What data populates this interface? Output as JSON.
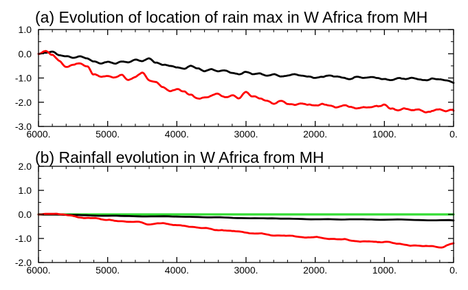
{
  "chart_data": [
    {
      "type": "line",
      "title": "(a) Evolution of location of rain max in W Africa from MH",
      "xlabel": "",
      "ylabel": "",
      "xlim": [
        6000,
        0
      ],
      "ylim": [
        -3.0,
        1.0
      ],
      "xticks": [
        6000,
        5000,
        4000,
        3000,
        2000,
        1000,
        0
      ],
      "xtick_labels": [
        "6000.",
        "5000.",
        "4000.",
        "3000.",
        "2000.",
        "1000.",
        "0."
      ],
      "yticks": [
        1.0,
        0.0,
        -1.0,
        -2.0,
        -3.0
      ],
      "ytick_labels": [
        "1.0",
        "0.0",
        "-1.0",
        "-2.0",
        "-3.0"
      ],
      "grid": false,
      "series": [
        {
          "name": "black",
          "color": "#000000",
          "x": [
            6000,
            5900,
            5800,
            5700,
            5600,
            5500,
            5400,
            5300,
            5200,
            5100,
            5000,
            4900,
            4800,
            4700,
            4600,
            4500,
            4400,
            4300,
            4200,
            4100,
            4000,
            3900,
            3800,
            3700,
            3600,
            3500,
            3400,
            3300,
            3200,
            3100,
            3000,
            2900,
            2800,
            2700,
            2600,
            2500,
            2400,
            2300,
            2200,
            2100,
            2000,
            1900,
            1800,
            1700,
            1600,
            1500,
            1400,
            1300,
            1200,
            1100,
            1000,
            900,
            800,
            700,
            600,
            500,
            400,
            300,
            200,
            100,
            0
          ],
          "values": [
            0.0,
            0.05,
            0.1,
            -0.05,
            -0.1,
            -0.15,
            -0.08,
            -0.2,
            -0.3,
            -0.4,
            -0.35,
            -0.4,
            -0.3,
            -0.35,
            -0.25,
            -0.3,
            -0.2,
            -0.35,
            -0.45,
            -0.5,
            -0.55,
            -0.6,
            -0.5,
            -0.6,
            -0.7,
            -0.65,
            -0.75,
            -0.7,
            -0.8,
            -0.85,
            -0.75,
            -0.85,
            -0.8,
            -0.9,
            -0.85,
            -0.95,
            -0.9,
            -0.85,
            -0.9,
            -0.95,
            -1.0,
            -0.95,
            -0.9,
            -0.95,
            -1.0,
            -1.05,
            -0.95,
            -1.0,
            -0.95,
            -1.0,
            -1.05,
            -1.1,
            -1.0,
            -1.05,
            -1.0,
            -1.05,
            -1.1,
            -1.0,
            -1.05,
            -1.1,
            -1.2
          ]
        },
        {
          "name": "red",
          "color": "#ff0000",
          "x": [
            6000,
            5900,
            5800,
            5700,
            5600,
            5500,
            5400,
            5300,
            5200,
            5100,
            5000,
            4900,
            4800,
            4700,
            4600,
            4500,
            4400,
            4300,
            4200,
            4100,
            4000,
            3900,
            3800,
            3700,
            3600,
            3500,
            3400,
            3300,
            3200,
            3100,
            3000,
            2900,
            2800,
            2700,
            2600,
            2500,
            2400,
            2300,
            2200,
            2100,
            2000,
            1900,
            1800,
            1700,
            1600,
            1500,
            1400,
            1300,
            1200,
            1100,
            1000,
            900,
            800,
            700,
            600,
            500,
            400,
            300,
            200,
            100,
            0
          ],
          "values": [
            0.0,
            0.1,
            -0.05,
            -0.3,
            -0.5,
            -0.45,
            -0.4,
            -0.55,
            -0.85,
            -0.95,
            -0.9,
            -0.95,
            -0.85,
            -1.1,
            -0.95,
            -0.8,
            -1.1,
            -1.15,
            -1.4,
            -1.55,
            -1.45,
            -1.55,
            -1.7,
            -1.85,
            -1.8,
            -1.75,
            -1.65,
            -1.8,
            -1.7,
            -1.85,
            -1.6,
            -1.75,
            -1.85,
            -1.95,
            -2.05,
            -1.95,
            -2.05,
            -2.1,
            -2.05,
            -2.1,
            -2.15,
            -2.1,
            -2.15,
            -2.2,
            -2.15,
            -2.2,
            -2.25,
            -2.2,
            -2.25,
            -2.2,
            -2.1,
            -2.25,
            -2.35,
            -2.3,
            -2.35,
            -2.3,
            -2.4,
            -2.35,
            -2.3,
            -2.35,
            -2.35
          ]
        }
      ]
    },
    {
      "type": "line",
      "title": "(b) Rainfall evolution in W Africa from MH",
      "xlabel": "",
      "ylabel": "",
      "xlim": [
        6000,
        0
      ],
      "ylim": [
        -2.0,
        2.0
      ],
      "xticks": [
        6000,
        5000,
        4000,
        3000,
        2000,
        1000,
        0
      ],
      "xtick_labels": [
        "6000.",
        "5000.",
        "4000.",
        "3000.",
        "2000.",
        "1000.",
        "0."
      ],
      "yticks": [
        2.0,
        1.0,
        0.0,
        -1.0,
        -2.0
      ],
      "ytick_labels": [
        "2.0",
        "1.0",
        "0.0",
        "-1.0",
        "-2.0"
      ],
      "grid": false,
      "series": [
        {
          "name": "green",
          "color": "#33dd33",
          "x": [
            6000,
            0
          ],
          "values": [
            0.0,
            0.0
          ]
        },
        {
          "name": "black",
          "color": "#000000",
          "x": [
            6000,
            5500,
            5000,
            4500,
            4000,
            3500,
            3000,
            2500,
            2000,
            1500,
            1000,
            500,
            0
          ],
          "values": [
            0.0,
            -0.02,
            -0.05,
            -0.08,
            -0.1,
            -0.12,
            -0.15,
            -0.18,
            -0.2,
            -0.2,
            -0.22,
            -0.24,
            -0.25
          ]
        },
        {
          "name": "red",
          "color": "#ff0000",
          "x": [
            6000,
            5800,
            5600,
            5400,
            5200,
            5000,
            4800,
            4600,
            4400,
            4200,
            4000,
            3800,
            3600,
            3400,
            3200,
            3000,
            2800,
            2600,
            2400,
            2200,
            2000,
            1800,
            1600,
            1400,
            1200,
            1000,
            800,
            600,
            400,
            200,
            0
          ],
          "values": [
            0.0,
            0.05,
            0.0,
            -0.1,
            -0.15,
            -0.25,
            -0.3,
            -0.3,
            -0.4,
            -0.4,
            -0.45,
            -0.5,
            -0.55,
            -0.65,
            -0.7,
            -0.75,
            -0.8,
            -0.9,
            -0.9,
            -0.95,
            -0.95,
            -1.05,
            -1.0,
            -1.1,
            -1.1,
            -1.15,
            -1.25,
            -1.3,
            -1.3,
            -1.35,
            -1.2
          ]
        }
      ]
    }
  ]
}
